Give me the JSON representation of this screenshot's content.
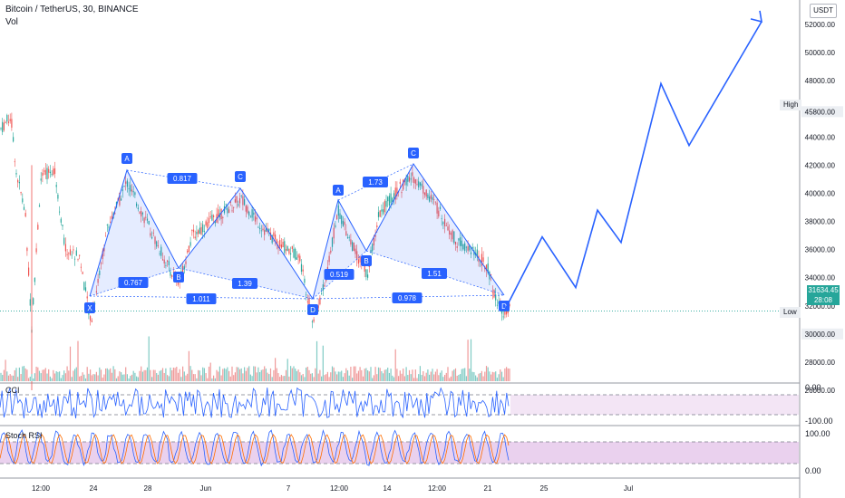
{
  "header": {
    "symbol_line": "Bitcoin / TetherUS, 30, BINANCE",
    "volume_label": "Vol",
    "currency_button": "USDT"
  },
  "indicators": {
    "cci_label": "CCI",
    "stoch_label": "Stoch RSI",
    "cci_scale": [
      "0.00",
      "-100.00"
    ],
    "stoch_scale": [
      "100.00",
      "0.00"
    ]
  },
  "price_axis": {
    "ticks": [
      "52000.00",
      "50000.00",
      "48000.00",
      "45800.00",
      "44000.00",
      "42000.00",
      "40000.00",
      "38000.00",
      "36000.00",
      "34000.00",
      "32000.00",
      "30000.00",
      "28000.00",
      "26000.00"
    ],
    "tick_values": [
      52000,
      50000,
      48000,
      45800,
      44000,
      42000,
      40000,
      38000,
      36000,
      34000,
      32000,
      30000,
      28000,
      26000
    ],
    "high_label": "High",
    "high_value": "45800.00",
    "low_label": "Low",
    "low_value": "30000.00",
    "current_price": "31634.45",
    "countdown": "28:08",
    "current_color": "#26a69a"
  },
  "time_axis": {
    "labels": [
      "12:00",
      "24",
      "28",
      "Jun",
      "7",
      "12:00",
      "14",
      "12:00",
      "21",
      "25",
      "Jul"
    ]
  },
  "patterns": {
    "points": [
      "X",
      "A",
      "B",
      "C",
      "D",
      "A",
      "B",
      "C",
      "D"
    ],
    "ratios": [
      "0.817",
      "0.767",
      "1.39",
      "1.011",
      "0.519",
      "1.73",
      "1.51",
      "0.978"
    ],
    "color": "#2962ff"
  },
  "projection": {
    "color": "#2962ff",
    "prices": [
      31600,
      36900,
      33300,
      38800,
      36500,
      47800,
      43400,
      52200
    ]
  }
}
